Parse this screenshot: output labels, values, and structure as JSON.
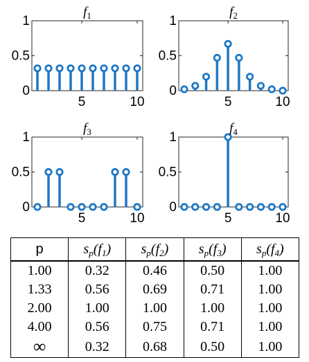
{
  "chart_data": [
    {
      "type": "stem",
      "title_main": "f",
      "title_sub": "1",
      "x": [
        1,
        2,
        3,
        4,
        5,
        6,
        7,
        8,
        9,
        10
      ],
      "values": [
        0.32,
        0.32,
        0.32,
        0.32,
        0.32,
        0.32,
        0.32,
        0.32,
        0.32,
        0.32
      ],
      "xlim": [
        1,
        10
      ],
      "ylim": [
        0,
        1
      ],
      "xticks": [
        5,
        10
      ],
      "yticks": [
        0,
        0.5,
        1
      ],
      "xtick_labels": [
        "5",
        "10"
      ],
      "ytick_labels": [
        "0",
        "0.5",
        "1"
      ],
      "color": "#1f77c4",
      "grid": false
    },
    {
      "type": "stem",
      "title_main": "f",
      "title_sub": "2",
      "x": [
        1,
        2,
        3,
        4,
        5,
        6,
        7,
        8,
        9,
        10
      ],
      "values": [
        0.02,
        0.07,
        0.2,
        0.47,
        0.67,
        0.47,
        0.2,
        0.07,
        0.02,
        0.0
      ],
      "xlim": [
        1,
        10
      ],
      "ylim": [
        0,
        1
      ],
      "xticks": [
        5,
        10
      ],
      "yticks": [
        0,
        0.5,
        1
      ],
      "xtick_labels": [
        "5",
        "10"
      ],
      "ytick_labels": [
        "0",
        "0.5",
        "1"
      ],
      "color": "#1f77c4",
      "grid": false
    },
    {
      "type": "stem",
      "title_main": "f",
      "title_sub": "3",
      "x": [
        1,
        2,
        3,
        4,
        5,
        6,
        7,
        8,
        9,
        10
      ],
      "values": [
        0,
        0.5,
        0.5,
        0,
        0,
        0,
        0,
        0.5,
        0.5,
        0
      ],
      "xlim": [
        1,
        10
      ],
      "ylim": [
        0,
        1
      ],
      "xticks": [
        5,
        10
      ],
      "yticks": [
        0,
        0.5,
        1
      ],
      "xtick_labels": [
        "5",
        "10"
      ],
      "ytick_labels": [
        "0",
        "0.5",
        "1"
      ],
      "color": "#1f77c4",
      "grid": false
    },
    {
      "type": "stem",
      "title_main": "f",
      "title_sub": "4",
      "x": [
        1,
        2,
        3,
        4,
        5,
        6,
        7,
        8,
        9,
        10
      ],
      "values": [
        0,
        0,
        0,
        0,
        1,
        0,
        0,
        0,
        0,
        0
      ],
      "xlim": [
        1,
        10
      ],
      "ylim": [
        0,
        1
      ],
      "xticks": [
        5,
        10
      ],
      "yticks": [
        0,
        0.5,
        1
      ],
      "xtick_labels": [
        "5",
        "10"
      ],
      "ytick_labels": [
        "0",
        "0.5",
        "1"
      ],
      "color": "#1f77c4",
      "grid": false
    },
    {
      "type": "table",
      "header": {
        "p": "p",
        "s_main": "s",
        "s_sub": "p",
        "f_labels": [
          {
            "main": "f",
            "sub": "1"
          },
          {
            "main": "f",
            "sub": "2"
          },
          {
            "main": "f",
            "sub": "3"
          },
          {
            "main": "f",
            "sub": "4"
          }
        ]
      },
      "rows": [
        {
          "p": "1.00",
          "values": [
            "0.32",
            "0.46",
            "0.50",
            "1.00"
          ]
        },
        {
          "p": "1.33",
          "values": [
            "0.56",
            "0.69",
            "0.71",
            "1.00"
          ]
        },
        {
          "p": "2.00",
          "values": [
            "1.00",
            "1.00",
            "1.00",
            "1.00"
          ]
        },
        {
          "p": "4.00",
          "values": [
            "0.56",
            "0.75",
            "0.71",
            "1.00"
          ]
        },
        {
          "p": "∞",
          "values": [
            "0.32",
            "0.68",
            "0.50",
            "1.00"
          ]
        }
      ]
    }
  ]
}
